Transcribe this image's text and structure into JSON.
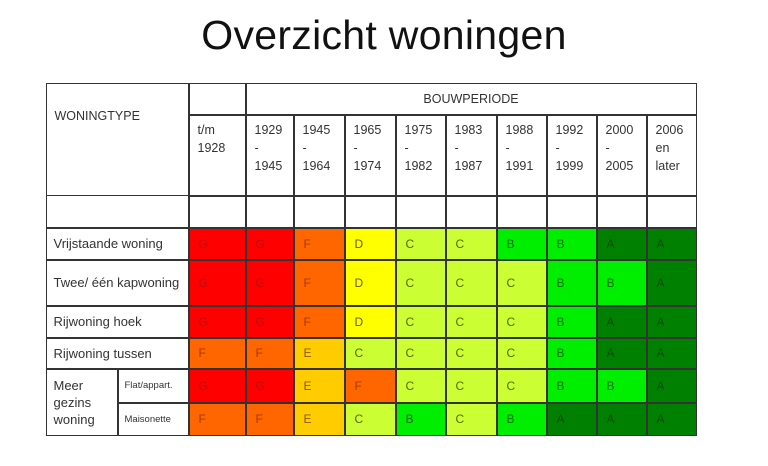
{
  "title": "Overzicht woningen",
  "table": {
    "type_header": "WONINGTYPE",
    "period_header": "BOUWPERIODE",
    "periods": [
      {
        "lines": [
          "t/m",
          "1928",
          ""
        ]
      },
      {
        "lines": [
          "1929",
          "-",
          "1945"
        ]
      },
      {
        "lines": [
          "1945",
          "-",
          "1964"
        ]
      },
      {
        "lines": [
          "1965",
          "-",
          "1974"
        ]
      },
      {
        "lines": [
          "1975",
          "-",
          "1982"
        ]
      },
      {
        "lines": [
          "1983",
          "-",
          "1987"
        ]
      },
      {
        "lines": [
          "1988",
          "-",
          "1991"
        ]
      },
      {
        "lines": [
          "1992",
          "-",
          "1999"
        ]
      },
      {
        "lines": [
          "2000",
          "-",
          "2005"
        ]
      },
      {
        "lines": [
          "2006",
          "en",
          "later"
        ]
      }
    ],
    "group_label": "Meer gezins woning",
    "rows": [
      {
        "label": "Vrijstaande woning",
        "ratings": [
          "G",
          "G",
          "F",
          "D",
          "C",
          "C",
          "B",
          "B",
          "A",
          "A"
        ]
      },
      {
        "label": "Twee/ één kapwoning",
        "ratings": [
          "G",
          "G",
          "F",
          "D",
          "C",
          "C",
          "C",
          "B",
          "B",
          "A"
        ]
      },
      {
        "label": "Rijwoning hoek",
        "ratings": [
          "G",
          "G",
          "F",
          "D",
          "C",
          "C",
          "C",
          "B",
          "A",
          "A"
        ]
      },
      {
        "label": "Rijwoning tussen",
        "ratings": [
          "F",
          "F",
          "E",
          "C",
          "C",
          "C",
          "C",
          "B",
          "A",
          "A"
        ]
      },
      {
        "label": "Flat/appart.",
        "ratings": [
          "G",
          "G",
          "E",
          "F",
          "C",
          "C",
          "C",
          "B",
          "B",
          "A"
        ]
      },
      {
        "label": "Maisonette",
        "ratings": [
          "F",
          "F",
          "E",
          "C",
          "B",
          "C",
          "B",
          "A",
          "A",
          "A"
        ]
      }
    ]
  },
  "rating_colors": {
    "A": {
      "bg": "#008000",
      "fg": "#0a4a0a"
    },
    "B": {
      "bg": "#00ee00",
      "fg": "#0a6a0a"
    },
    "C": {
      "bg": "#ccff33",
      "fg": "#556b00"
    },
    "D": {
      "bg": "#ffff00",
      "fg": "#6b5a00"
    },
    "E": {
      "bg": "#ffcc00",
      "fg": "#8a5a00"
    },
    "F": {
      "bg": "#ff6600",
      "fg": "#a33a00"
    },
    "G": {
      "bg": "#ff0000",
      "fg": "#b31010"
    }
  }
}
